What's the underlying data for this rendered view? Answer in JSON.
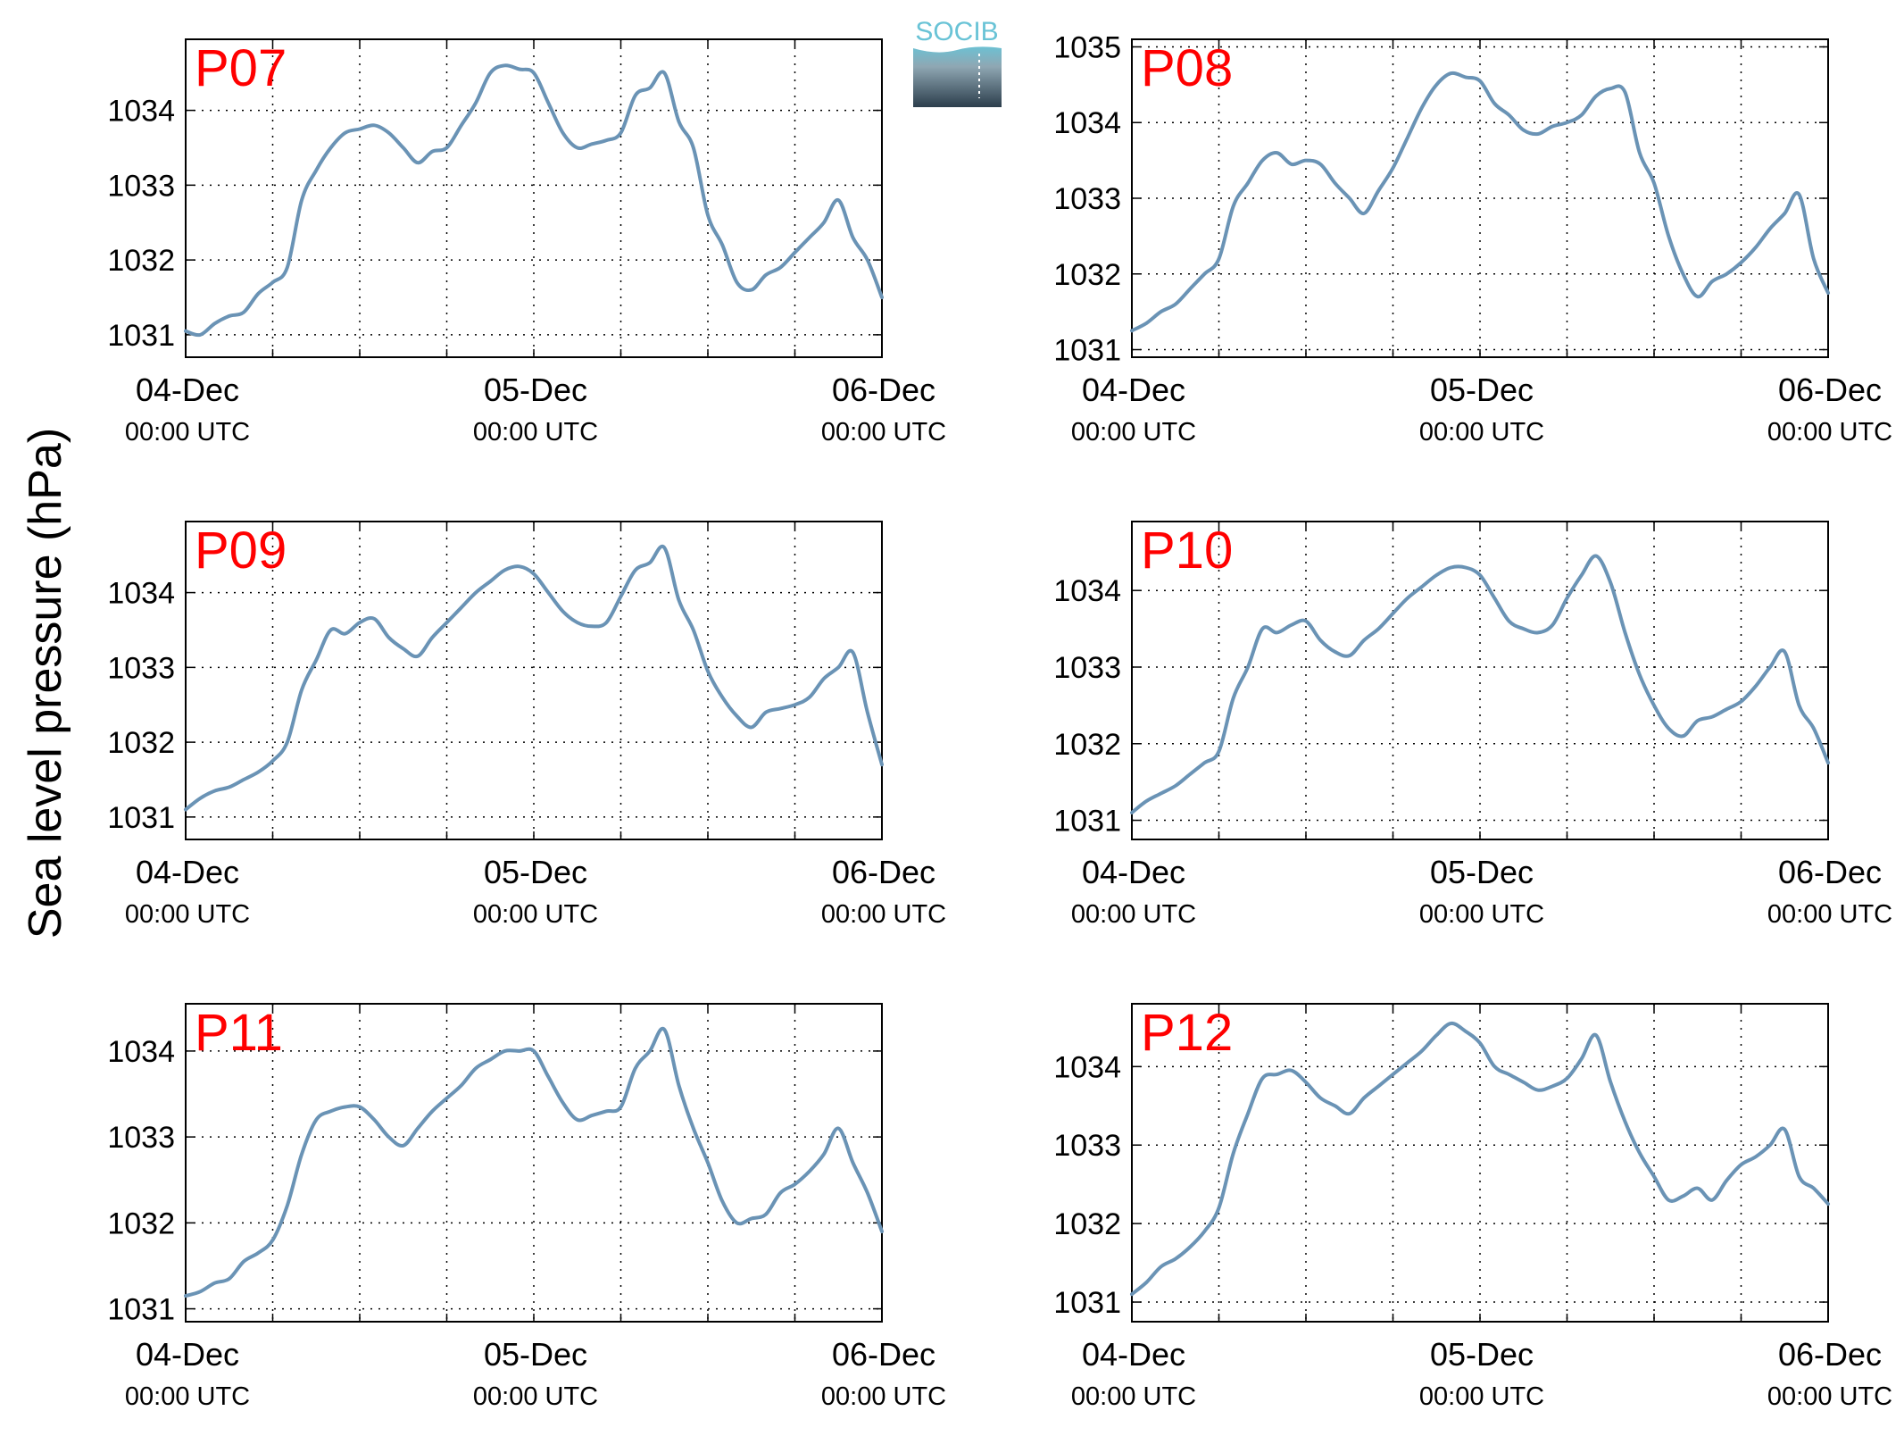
{
  "figure": {
    "ylabel": "Sea level pressure (hPa)",
    "logo": {
      "text": "SOCIB",
      "color_top": "#69c3d6",
      "color_bottom": "#2c3e4c"
    }
  },
  "colors": {
    "line": "#6a93b5",
    "panel_label": "#ff0000",
    "grid": "#000000"
  },
  "chart_data": [
    {
      "type": "line",
      "name": "P07",
      "grid": true,
      "xlim": [
        "2015-12-04T00:00Z",
        "2015-12-06T00:00Z"
      ],
      "ylim": [
        1030.7,
        1034.95
      ],
      "yticks": [
        1031,
        1032,
        1033,
        1034
      ],
      "xtick_labels": [
        [
          "04-Dec",
          "00:00 UTC"
        ],
        [
          "05-Dec",
          "00:00 UTC"
        ],
        [
          "06-Dec",
          "00:00 UTC"
        ]
      ],
      "x_hours": [
        0,
        1,
        2,
        3,
        4,
        5,
        6,
        7,
        8,
        9,
        10,
        11,
        12,
        13,
        14,
        15,
        16,
        17,
        18,
        19,
        20,
        21,
        22,
        23,
        24,
        25,
        26,
        27,
        28,
        29,
        30,
        31,
        32,
        33,
        34,
        35,
        36,
        37,
        38,
        39,
        40,
        41,
        42,
        43,
        44,
        45,
        46,
        47,
        48
      ],
      "values": [
        1031.05,
        1031.0,
        1031.15,
        1031.25,
        1031.3,
        1031.55,
        1031.7,
        1031.9,
        1032.8,
        1033.2,
        1033.5,
        1033.7,
        1033.75,
        1033.8,
        1033.7,
        1033.5,
        1033.3,
        1033.45,
        1033.5,
        1033.8,
        1034.1,
        1034.5,
        1034.6,
        1034.55,
        1034.5,
        1034.1,
        1033.7,
        1033.5,
        1033.55,
        1033.6,
        1033.7,
        1034.2,
        1034.3,
        1034.5,
        1033.85,
        1033.5,
        1032.6,
        1032.2,
        1031.7,
        1031.6,
        1031.8,
        1031.9,
        1032.1,
        1032.3,
        1032.5,
        1032.8,
        1032.3,
        1032.0,
        1031.5
      ]
    },
    {
      "type": "line",
      "name": "P08",
      "grid": true,
      "xlim": [
        "2015-12-04T00:00Z",
        "2015-12-06T00:00Z"
      ],
      "ylim": [
        1030.9,
        1035.1
      ],
      "yticks": [
        1031,
        1032,
        1033,
        1034,
        1035
      ],
      "xtick_labels": [
        [
          "04-Dec",
          "00:00 UTC"
        ],
        [
          "05-Dec",
          "00:00 UTC"
        ],
        [
          "06-Dec",
          "00:00 UTC"
        ]
      ],
      "x_hours": [
        0,
        1,
        2,
        3,
        4,
        5,
        6,
        7,
        8,
        9,
        10,
        11,
        12,
        13,
        14,
        15,
        16,
        17,
        18,
        19,
        20,
        21,
        22,
        23,
        24,
        25,
        26,
        27,
        28,
        29,
        30,
        31,
        32,
        33,
        34,
        35,
        36,
        37,
        38,
        39,
        40,
        41,
        42,
        43,
        44,
        45,
        46,
        47,
        48
      ],
      "values": [
        1031.25,
        1031.35,
        1031.5,
        1031.6,
        1031.8,
        1032.0,
        1032.2,
        1032.9,
        1033.2,
        1033.5,
        1033.6,
        1033.45,
        1033.5,
        1033.45,
        1033.2,
        1033.0,
        1032.8,
        1033.1,
        1033.4,
        1033.8,
        1034.2,
        1034.5,
        1034.65,
        1034.6,
        1034.55,
        1034.25,
        1034.1,
        1033.9,
        1033.85,
        1033.95,
        1034.0,
        1034.1,
        1034.35,
        1034.45,
        1034.4,
        1033.6,
        1033.2,
        1032.5,
        1032.0,
        1031.7,
        1031.9,
        1032.0,
        1032.15,
        1032.35,
        1032.6,
        1032.8,
        1033.05,
        1032.2,
        1031.75
      ]
    },
    {
      "type": "line",
      "name": "P09",
      "grid": true,
      "xlim": [
        "2015-12-04T00:00Z",
        "2015-12-06T00:00Z"
      ],
      "ylim": [
        1030.7,
        1034.95
      ],
      "yticks": [
        1031,
        1032,
        1033,
        1034
      ],
      "xtick_labels": [
        [
          "04-Dec",
          "00:00 UTC"
        ],
        [
          "05-Dec",
          "00:00 UTC"
        ],
        [
          "06-Dec",
          "00:00 UTC"
        ]
      ],
      "x_hours": [
        0,
        1,
        2,
        3,
        4,
        5,
        6,
        7,
        8,
        9,
        10,
        11,
        12,
        13,
        14,
        15,
        16,
        17,
        18,
        19,
        20,
        21,
        22,
        23,
        24,
        25,
        26,
        27,
        28,
        29,
        30,
        31,
        32,
        33,
        34,
        35,
        36,
        37,
        38,
        39,
        40,
        41,
        42,
        43,
        44,
        45,
        46,
        47,
        48
      ],
      "values": [
        1031.1,
        1031.25,
        1031.35,
        1031.4,
        1031.5,
        1031.6,
        1031.75,
        1032.0,
        1032.7,
        1033.1,
        1033.5,
        1033.45,
        1033.6,
        1033.65,
        1033.4,
        1033.25,
        1033.15,
        1033.4,
        1033.6,
        1033.8,
        1034.0,
        1034.15,
        1034.3,
        1034.35,
        1034.25,
        1034.0,
        1033.75,
        1033.6,
        1033.55,
        1033.6,
        1033.95,
        1034.3,
        1034.4,
        1034.6,
        1033.9,
        1033.5,
        1032.95,
        1032.6,
        1032.35,
        1032.2,
        1032.4,
        1032.45,
        1032.5,
        1032.6,
        1032.85,
        1033.0,
        1033.2,
        1032.4,
        1031.7
      ]
    },
    {
      "type": "line",
      "name": "P10",
      "grid": true,
      "xlim": [
        "2015-12-04T00:00Z",
        "2015-12-06T00:00Z"
      ],
      "ylim": [
        1030.75,
        1034.9
      ],
      "yticks": [
        1031,
        1032,
        1033,
        1034
      ],
      "xtick_labels": [
        [
          "04-Dec",
          "00:00 UTC"
        ],
        [
          "05-Dec",
          "00:00 UTC"
        ],
        [
          "06-Dec",
          "00:00 UTC"
        ]
      ],
      "x_hours": [
        0,
        1,
        2,
        3,
        4,
        5,
        6,
        7,
        8,
        9,
        10,
        11,
        12,
        13,
        14,
        15,
        16,
        17,
        18,
        19,
        20,
        21,
        22,
        23,
        24,
        25,
        26,
        27,
        28,
        29,
        30,
        31,
        32,
        33,
        34,
        35,
        36,
        37,
        38,
        39,
        40,
        41,
        42,
        43,
        44,
        45,
        46,
        47,
        48
      ],
      "values": [
        1031.1,
        1031.25,
        1031.35,
        1031.45,
        1031.6,
        1031.75,
        1031.9,
        1032.6,
        1033.0,
        1033.5,
        1033.45,
        1033.55,
        1033.6,
        1033.35,
        1033.2,
        1033.15,
        1033.35,
        1033.5,
        1033.7,
        1033.9,
        1034.05,
        1034.2,
        1034.3,
        1034.3,
        1034.2,
        1033.9,
        1033.6,
        1033.5,
        1033.45,
        1033.55,
        1033.9,
        1034.2,
        1034.45,
        1034.1,
        1033.45,
        1032.9,
        1032.5,
        1032.2,
        1032.1,
        1032.3,
        1032.35,
        1032.45,
        1032.55,
        1032.75,
        1033.0,
        1033.2,
        1032.5,
        1032.2,
        1031.75
      ]
    },
    {
      "type": "line",
      "name": "P11",
      "grid": true,
      "xlim": [
        "2015-12-04T00:00Z",
        "2015-12-06T00:00Z"
      ],
      "ylim": [
        1030.85,
        1034.55
      ],
      "yticks": [
        1031,
        1032,
        1033,
        1034
      ],
      "xtick_labels": [
        [
          "04-Dec",
          "00:00 UTC"
        ],
        [
          "05-Dec",
          "00:00 UTC"
        ],
        [
          "06-Dec",
          "00:00 UTC"
        ]
      ],
      "x_hours": [
        0,
        1,
        2,
        3,
        4,
        5,
        6,
        7,
        8,
        9,
        10,
        11,
        12,
        13,
        14,
        15,
        16,
        17,
        18,
        19,
        20,
        21,
        22,
        23,
        24,
        25,
        26,
        27,
        28,
        29,
        30,
        31,
        32,
        33,
        34,
        35,
        36,
        37,
        38,
        39,
        40,
        41,
        42,
        43,
        44,
        45,
        46,
        47,
        48
      ],
      "values": [
        1031.15,
        1031.2,
        1031.3,
        1031.35,
        1031.55,
        1031.65,
        1031.8,
        1032.2,
        1032.8,
        1033.2,
        1033.3,
        1033.35,
        1033.35,
        1033.2,
        1033.0,
        1032.9,
        1033.1,
        1033.3,
        1033.45,
        1033.6,
        1033.8,
        1033.9,
        1034.0,
        1034.0,
        1034.0,
        1033.7,
        1033.4,
        1033.2,
        1033.25,
        1033.3,
        1033.35,
        1033.8,
        1034.0,
        1034.25,
        1033.6,
        1033.1,
        1032.7,
        1032.25,
        1032.0,
        1032.05,
        1032.1,
        1032.35,
        1032.45,
        1032.6,
        1032.8,
        1033.1,
        1032.7,
        1032.35,
        1031.9
      ]
    },
    {
      "type": "line",
      "name": "P12",
      "grid": true,
      "xlim": [
        "2015-12-04T00:00Z",
        "2015-12-06T00:00Z"
      ],
      "ylim": [
        1030.75,
        1034.8
      ],
      "yticks": [
        1031,
        1032,
        1033,
        1034
      ],
      "xtick_labels": [
        [
          "04-Dec",
          "00:00 UTC"
        ],
        [
          "05-Dec",
          "00:00 UTC"
        ],
        [
          "06-Dec",
          "00:00 UTC"
        ]
      ],
      "x_hours": [
        0,
        1,
        2,
        3,
        4,
        5,
        6,
        7,
        8,
        9,
        10,
        11,
        12,
        13,
        14,
        15,
        16,
        17,
        18,
        19,
        20,
        21,
        22,
        23,
        24,
        25,
        26,
        27,
        28,
        29,
        30,
        31,
        32,
        33,
        34,
        35,
        36,
        37,
        38,
        39,
        40,
        41,
        42,
        43,
        44,
        45,
        46,
        47,
        48
      ],
      "values": [
        1031.1,
        1031.25,
        1031.45,
        1031.55,
        1031.7,
        1031.9,
        1032.2,
        1032.9,
        1033.4,
        1033.85,
        1033.9,
        1033.95,
        1033.8,
        1033.6,
        1033.5,
        1033.4,
        1033.6,
        1033.75,
        1033.9,
        1034.05,
        1034.2,
        1034.4,
        1034.55,
        1034.45,
        1034.3,
        1034.0,
        1033.9,
        1033.8,
        1033.7,
        1033.75,
        1033.85,
        1034.1,
        1034.4,
        1033.8,
        1033.3,
        1032.9,
        1032.6,
        1032.3,
        1032.35,
        1032.45,
        1032.3,
        1032.55,
        1032.75,
        1032.85,
        1033.0,
        1033.2,
        1032.6,
        1032.45,
        1032.25
      ]
    }
  ]
}
